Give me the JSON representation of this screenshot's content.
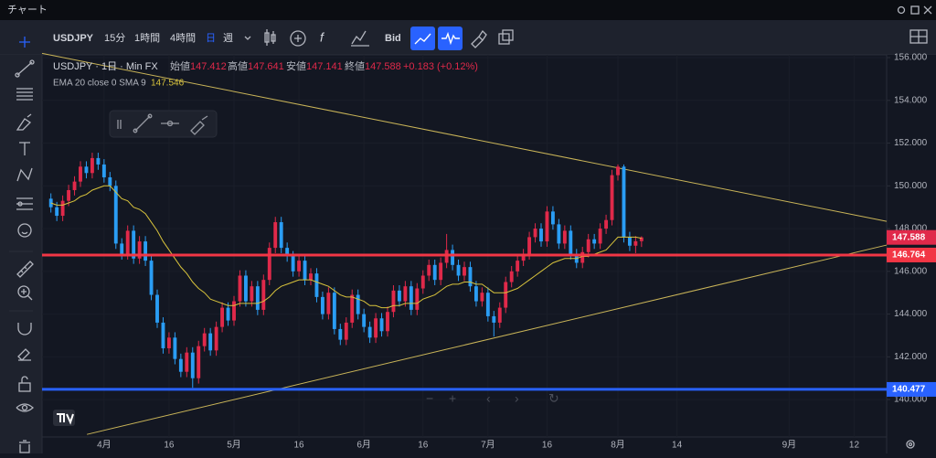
{
  "window": {
    "title": "チャート"
  },
  "toolbar": {
    "symbol": "USDJPY",
    "intervals": [
      "15分",
      "1時間",
      "4時間",
      "日",
      "週"
    ],
    "price_source": "Bid"
  },
  "legend": {
    "symbol_line": "USDJPY · 1日 · Min FX",
    "open_label": "始値",
    "high_label": "高値",
    "low_label": "安値",
    "close_label": "終値",
    "change": "+0.183 (+0.12%)",
    "indicator": "EMA 20 close 0 SMA 9"
  },
  "chart_data": {
    "type": "candlestick",
    "up_color": "#e0294a",
    "down_color": "#2a9df4",
    "ema_color": "#d8c33c",
    "xlim": [
      -1.5,
      141.5
    ],
    "xticks": [
      {
        "value": 9,
        "label": "4月"
      },
      {
        "value": 20,
        "label": "16"
      },
      {
        "value": 31,
        "label": "5月"
      },
      {
        "value": 42,
        "label": "16"
      },
      {
        "value": 53,
        "label": "6月"
      },
      {
        "value": 63,
        "label": "16"
      },
      {
        "value": 74,
        "label": "7月"
      },
      {
        "value": 84,
        "label": "16"
      },
      {
        "value": 96,
        "label": "8月"
      },
      {
        "value": 106,
        "label": "14"
      },
      {
        "value": 125,
        "label": "9月"
      },
      {
        "value": 136,
        "label": "12"
      }
    ],
    "ylim": [
      138.25,
      156.13
    ],
    "yticks": [
      {
        "value": 140,
        "label": "140.000"
      },
      {
        "value": 142,
        "label": "142.000"
      },
      {
        "value": 144,
        "label": "144.000"
      },
      {
        "value": 146,
        "label": "146.000"
      },
      {
        "value": 148,
        "label": "148.000"
      },
      {
        "value": 150,
        "label": "150.000"
      },
      {
        "value": 152,
        "label": "152.000"
      },
      {
        "value": 154,
        "label": "154.000"
      },
      {
        "value": 156,
        "label": "156.000"
      }
    ],
    "grid": true,
    "ohlc": [
      [
        149.4,
        149.65,
        148.75,
        149.0
      ],
      [
        149.0,
        149.25,
        148.35,
        148.6
      ],
      [
        148.6,
        149.55,
        148.35,
        149.3
      ],
      [
        149.3,
        150.05,
        149.05,
        149.8
      ],
      [
        149.8,
        150.45,
        149.55,
        150.2
      ],
      [
        150.2,
        151.15,
        149.95,
        150.9
      ],
      [
        150.9,
        151.15,
        150.35,
        150.6
      ],
      [
        150.6,
        151.55,
        150.35,
        151.3
      ],
      [
        151.3,
        151.55,
        150.75,
        151.0
      ],
      [
        151.0,
        151.25,
        150.15,
        150.4
      ],
      [
        150.4,
        150.65,
        149.75,
        150.0
      ],
      [
        150.0,
        150.25,
        147.05,
        147.3
      ],
      [
        147.3,
        147.55,
        146.55,
        146.8
      ],
      [
        146.8,
        148.15,
        146.55,
        147.9
      ],
      [
        147.9,
        148.15,
        146.35,
        146.6
      ],
      [
        146.6,
        147.65,
        146.35,
        147.4
      ],
      [
        147.4,
        147.65,
        146.25,
        146.5
      ],
      [
        146.5,
        146.75,
        144.65,
        144.9
      ],
      [
        144.9,
        145.15,
        143.35,
        143.6
      ],
      [
        143.6,
        143.85,
        142.15,
        142.4
      ],
      [
        142.4,
        143.15,
        142.15,
        142.9
      ],
      [
        142.9,
        143.15,
        141.65,
        141.9
      ],
      [
        141.9,
        142.15,
        141.05,
        141.3
      ],
      [
        141.3,
        142.45,
        141.05,
        142.2
      ],
      [
        142.2,
        142.45,
        140.55,
        141.0
      ],
      [
        141.0,
        142.75,
        140.75,
        142.5
      ],
      [
        142.5,
        143.35,
        142.25,
        143.1
      ],
      [
        143.1,
        143.35,
        142.05,
        142.3
      ],
      [
        142.3,
        143.65,
        142.05,
        143.4
      ],
      [
        143.4,
        144.55,
        143.15,
        144.3
      ],
      [
        144.3,
        144.55,
        143.45,
        143.7
      ],
      [
        143.7,
        144.85,
        143.45,
        144.6
      ],
      [
        144.6,
        146.05,
        144.35,
        145.8
      ],
      [
        145.8,
        146.05,
        144.35,
        144.6
      ],
      [
        144.6,
        145.55,
        144.35,
        145.3
      ],
      [
        145.3,
        145.55,
        143.95,
        144.2
      ],
      [
        144.2,
        145.85,
        143.95,
        145.6
      ],
      [
        145.6,
        147.35,
        145.35,
        147.1
      ],
      [
        147.1,
        148.55,
        146.85,
        148.3
      ],
      [
        148.3,
        148.55,
        146.85,
        147.1
      ],
      [
        147.1,
        147.35,
        146.45,
        146.7
      ],
      [
        146.7,
        146.95,
        145.75,
        146.0
      ],
      [
        146.0,
        146.75,
        145.75,
        146.5
      ],
      [
        146.5,
        146.75,
        145.35,
        145.6
      ],
      [
        145.6,
        146.15,
        145.35,
        145.9
      ],
      [
        145.9,
        146.15,
        144.55,
        144.8
      ],
      [
        144.8,
        145.05,
        143.75,
        144.0
      ],
      [
        144.0,
        145.25,
        143.75,
        145.0
      ],
      [
        145.0,
        145.25,
        143.05,
        143.3
      ],
      [
        143.3,
        143.55,
        142.55,
        142.8
      ],
      [
        142.8,
        143.85,
        142.55,
        143.6
      ],
      [
        143.6,
        145.15,
        143.35,
        144.9
      ],
      [
        144.9,
        145.15,
        143.75,
        144.0
      ],
      [
        144.0,
        144.25,
        143.15,
        143.4
      ],
      [
        143.4,
        143.65,
        142.65,
        142.9
      ],
      [
        142.9,
        144.05,
        142.65,
        143.8
      ],
      [
        143.8,
        144.05,
        142.95,
        143.2
      ],
      [
        143.2,
        144.35,
        142.95,
        144.1
      ],
      [
        144.1,
        145.35,
        143.85,
        145.1
      ],
      [
        145.1,
        145.35,
        144.35,
        144.6
      ],
      [
        144.6,
        145.55,
        144.35,
        145.3
      ],
      [
        145.3,
        145.55,
        143.95,
        144.2
      ],
      [
        144.2,
        145.45,
        143.95,
        145.2
      ],
      [
        145.2,
        146.05,
        144.95,
        145.8
      ],
      [
        145.8,
        146.55,
        145.55,
        146.3
      ],
      [
        146.3,
        146.55,
        145.35,
        145.6
      ],
      [
        145.6,
        146.65,
        145.35,
        146.4
      ],
      [
        146.4,
        147.75,
        146.15,
        147.0
      ],
      [
        147.0,
        147.25,
        146.05,
        146.3
      ],
      [
        146.3,
        146.55,
        145.55,
        145.8
      ],
      [
        145.8,
        146.45,
        145.55,
        146.2
      ],
      [
        146.2,
        146.45,
        145.05,
        145.3
      ],
      [
        145.3,
        145.55,
        144.35,
        144.6
      ],
      [
        144.6,
        145.25,
        144.35,
        145.0
      ],
      [
        145.0,
        145.25,
        143.65,
        143.9
      ],
      [
        143.9,
        144.15,
        142.95,
        143.6
      ],
      [
        143.6,
        144.55,
        143.35,
        144.3
      ],
      [
        144.3,
        145.75,
        144.05,
        145.5
      ],
      [
        145.5,
        146.25,
        145.25,
        146.0
      ],
      [
        146.0,
        146.75,
        145.75,
        146.5
      ],
      [
        146.5,
        147.05,
        146.25,
        146.8
      ],
      [
        146.8,
        147.85,
        146.55,
        147.6
      ],
      [
        147.6,
        148.25,
        147.35,
        148.0
      ],
      [
        148.0,
        148.25,
        147.15,
        147.4
      ],
      [
        147.4,
        149.05,
        147.15,
        148.8
      ],
      [
        148.8,
        149.05,
        147.95,
        148.2
      ],
      [
        148.2,
        148.45,
        147.05,
        147.3
      ],
      [
        147.3,
        148.15,
        147.05,
        147.9
      ],
      [
        147.9,
        148.15,
        146.55,
        146.8
      ],
      [
        146.8,
        147.05,
        146.15,
        146.4
      ],
      [
        146.4,
        147.15,
        146.15,
        146.9
      ],
      [
        146.9,
        147.75,
        146.65,
        147.5
      ],
      [
        147.5,
        147.75,
        147.05,
        147.3
      ],
      [
        147.3,
        148.25,
        147.05,
        148.0
      ],
      [
        148.0,
        148.65,
        147.75,
        148.4
      ],
      [
        148.4,
        150.75,
        148.15,
        150.5
      ],
      [
        150.5,
        151.0,
        150.25,
        150.9
      ],
      [
        150.9,
        151.0,
        147.35,
        147.6
      ],
      [
        147.6,
        147.85,
        146.95,
        147.2
      ],
      [
        147.2,
        147.65,
        146.85,
        147.41
      ],
      [
        147.412,
        147.641,
        147.141,
        147.588
      ]
    ],
    "ema": [
      149.2,
      149.1,
      149.1,
      149.2,
      149.3,
      149.5,
      149.6,
      149.8,
      149.9,
      150.0,
      150.0,
      149.7,
      149.4,
      149.3,
      149.0,
      148.9,
      148.7,
      148.3,
      147.9,
      147.4,
      147.0,
      146.6,
      146.2,
      145.9,
      145.5,
      145.2,
      145.0,
      144.7,
      144.6,
      144.5,
      144.4,
      144.4,
      144.5,
      144.5,
      144.5,
      144.5,
      144.6,
      144.8,
      145.1,
      145.3,
      145.4,
      145.5,
      145.6,
      145.6,
      145.6,
      145.5,
      145.4,
      145.3,
      145.1,
      144.9,
      144.8,
      144.8,
      144.7,
      144.6,
      144.4,
      144.4,
      144.3,
      144.3,
      144.4,
      144.4,
      144.5,
      144.5,
      144.5,
      144.7,
      144.8,
      144.9,
      145.1,
      145.3,
      145.4,
      145.4,
      145.5,
      145.5,
      145.4,
      145.4,
      145.2,
      145.0,
      145.0,
      145.0,
      145.1,
      145.2,
      145.4,
      145.6,
      145.8,
      146.0,
      146.2,
      146.4,
      146.5,
      146.6,
      146.6,
      146.6,
      146.7,
      146.7,
      146.8,
      146.9,
      147.0,
      147.3,
      147.6,
      147.6,
      147.6,
      147.6,
      147.546
    ],
    "levels": [
      {
        "value": 146.764,
        "color": "#f23645"
      },
      {
        "value": 140.477,
        "color": "#2962ff"
      }
    ],
    "trendlines": [
      {
        "color": "#c9b458",
        "points": [
          [
            -1.5,
            156.2
          ],
          [
            141.5,
            148.34
          ]
        ]
      },
      {
        "color": "#c9b458",
        "points": [
          [
            6.1,
            138.37
          ],
          [
            141.5,
            147.23
          ]
        ]
      }
    ]
  }
}
